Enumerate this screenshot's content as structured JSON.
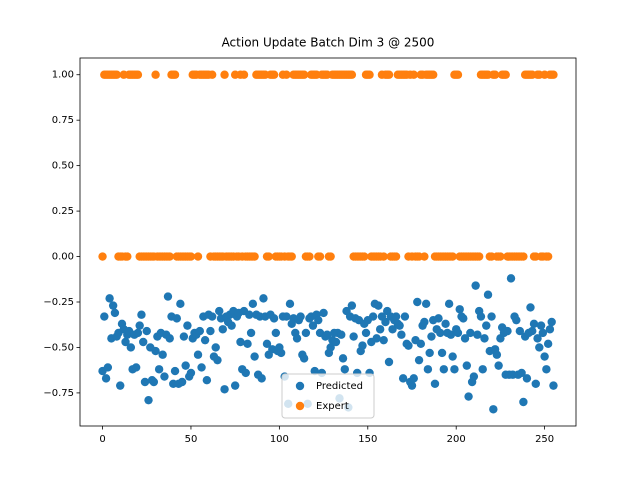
{
  "chart_data": {
    "type": "scatter",
    "title": "Action Update Batch Dim 3 @ 2500",
    "x": [
      0,
      1,
      2,
      3,
      4,
      5,
      6,
      7,
      8,
      9,
      10,
      11,
      12,
      13,
      14,
      15,
      16,
      17,
      18,
      19,
      20,
      21,
      22,
      23,
      24,
      25,
      26,
      27,
      28,
      29,
      30,
      31,
      32,
      33,
      34,
      35,
      36,
      37,
      38,
      39,
      40,
      41,
      42,
      43,
      44,
      45,
      46,
      47,
      48,
      49,
      50,
      51,
      52,
      53,
      54,
      55,
      56,
      57,
      58,
      59,
      60,
      61,
      62,
      63,
      64,
      65,
      66,
      67,
      68,
      69,
      70,
      71,
      72,
      73,
      74,
      75,
      76,
      77,
      78,
      79,
      80,
      81,
      82,
      83,
      84,
      85,
      86,
      87,
      88,
      89,
      90,
      91,
      92,
      93,
      94,
      95,
      96,
      97,
      98,
      99,
      100,
      101,
      102,
      103,
      104,
      105,
      106,
      107,
      108,
      109,
      110,
      111,
      112,
      113,
      114,
      115,
      116,
      117,
      118,
      119,
      120,
      121,
      122,
      123,
      124,
      125,
      126,
      127,
      128,
      129,
      130,
      131,
      132,
      133,
      134,
      135,
      136,
      137,
      138,
      139,
      140,
      141,
      142,
      143,
      144,
      145,
      146,
      147,
      148,
      149,
      150,
      151,
      152,
      153,
      154,
      155,
      156,
      157,
      158,
      159,
      160,
      161,
      162,
      163,
      164,
      165,
      166,
      167,
      168,
      169,
      170,
      171,
      172,
      173,
      174,
      175,
      176,
      177,
      178,
      179,
      180,
      181,
      182,
      183,
      184,
      185,
      186,
      187,
      188,
      189,
      190,
      191,
      192,
      193,
      194,
      195,
      196,
      197,
      198,
      199,
      200,
      201,
      202,
      203,
      204,
      205,
      206,
      207,
      208,
      209,
      210,
      211,
      212,
      213,
      214,
      215,
      216,
      217,
      218,
      219,
      220,
      221,
      222,
      223,
      224,
      225,
      226,
      227,
      228,
      229,
      230,
      231,
      232,
      233,
      234,
      235,
      236,
      237,
      238,
      239,
      240,
      241,
      242,
      243,
      244,
      245,
      246,
      247,
      248,
      249,
      250,
      251,
      252,
      253,
      254,
      255
    ],
    "series": [
      {
        "name": "Predicted",
        "color": "#1f77b4",
        "values": [
          -0.63,
          -0.33,
          -0.67,
          -0.61,
          -0.23,
          -0.45,
          -0.27,
          -0.31,
          -0.44,
          -0.42,
          -0.71,
          -0.37,
          -0.4,
          -0.47,
          -0.43,
          -0.41,
          -0.5,
          -0.62,
          -0.43,
          -0.61,
          -0.42,
          -0.38,
          -0.32,
          -0.47,
          -0.69,
          -0.41,
          -0.79,
          -0.5,
          -0.68,
          -0.69,
          -0.52,
          -0.44,
          -0.62,
          -0.42,
          -0.54,
          -0.66,
          -0.43,
          -0.22,
          -0.45,
          -0.33,
          -0.7,
          -0.63,
          -0.34,
          -0.7,
          -0.26,
          -0.69,
          -0.44,
          -0.6,
          -0.38,
          -0.66,
          -0.64,
          -0.45,
          -0.42,
          -0.43,
          -0.54,
          -0.41,
          -0.61,
          -0.33,
          -0.46,
          -0.68,
          -0.32,
          -0.41,
          -0.33,
          -0.55,
          -0.5,
          -0.57,
          -0.3,
          -0.34,
          -0.4,
          -0.73,
          -0.33,
          -0.36,
          -0.32,
          -0.38,
          -0.3,
          -0.71,
          -0.33,
          -0.31,
          -0.47,
          -0.62,
          -0.3,
          -0.64,
          -0.48,
          -0.32,
          -0.42,
          -0.26,
          -0.55,
          -0.32,
          -0.65,
          -0.33,
          -0.67,
          -0.23,
          -0.33,
          -0.48,
          -0.54,
          -0.32,
          -0.51,
          -0.34,
          -0.42,
          -0.52,
          -0.5,
          -0.53,
          -0.33,
          -0.66,
          -0.33,
          -0.81,
          -0.26,
          -0.37,
          -0.34,
          -0.42,
          -0.45,
          -0.35,
          -0.33,
          -0.54,
          -0.56,
          -0.42,
          -0.81,
          -0.34,
          -0.33,
          -0.38,
          -0.63,
          -0.32,
          -0.35,
          -0.42,
          -0.64,
          -0.31,
          -0.44,
          -0.43,
          -0.53,
          -0.5,
          -0.46,
          -0.42,
          -0.47,
          -0.42,
          -0.78,
          -0.43,
          -0.56,
          -0.62,
          -0.3,
          -0.83,
          -0.33,
          -0.27,
          -0.44,
          -0.34,
          -0.64,
          -0.35,
          -0.52,
          -0.49,
          -0.37,
          -0.42,
          -0.35,
          -0.64,
          -0.47,
          -0.33,
          -0.26,
          -0.45,
          -0.27,
          -0.4,
          -0.33,
          -0.46,
          -0.36,
          -0.3,
          -0.58,
          -0.33,
          -0.4,
          -0.35,
          -0.33,
          -0.37,
          -0.38,
          -0.43,
          -0.67,
          -0.33,
          -0.48,
          -0.49,
          -0.69,
          -0.71,
          -0.67,
          -0.46,
          -0.25,
          -0.57,
          -0.48,
          -0.38,
          -0.36,
          -0.26,
          -0.62,
          -0.53,
          -0.44,
          -0.35,
          -0.7,
          -0.4,
          -0.34,
          -0.42,
          -0.53,
          -0.62,
          -0.37,
          -0.42,
          -0.26,
          -0.43,
          -0.55,
          -0.62,
          -0.4,
          -0.42,
          -0.29,
          -0.33,
          -0.34,
          -0.45,
          -0.6,
          -0.77,
          -0.42,
          -0.69,
          -0.66,
          -0.16,
          -0.43,
          -0.3,
          -0.33,
          -0.62,
          -0.45,
          -0.38,
          -0.21,
          -0.52,
          -0.33,
          -0.84,
          -0.51,
          -0.54,
          -0.6,
          -0.45,
          -0.39,
          -0.42,
          -0.65,
          -0.41,
          -0.65,
          -0.12,
          -0.65,
          -0.33,
          -0.35,
          -0.65,
          -0.41,
          -0.64,
          -0.8,
          -0.44,
          -0.67,
          -0.42,
          -0.28,
          -0.41,
          -0.37,
          -0.7,
          -0.45,
          -0.5,
          -0.38,
          -0.42,
          -0.55,
          -0.62,
          -0.48,
          -0.4,
          -0.36,
          -0.71
        ]
      },
      {
        "name": "Expert",
        "color": "#ff7f0e",
        "values": [
          0,
          1,
          1,
          1,
          1,
          1,
          1,
          1,
          1,
          0,
          0,
          0,
          1,
          0,
          0,
          1,
          1,
          1,
          1,
          1,
          1,
          0,
          0,
          0,
          0,
          0,
          0,
          0,
          0,
          0,
          1,
          0,
          0,
          0,
          0,
          0,
          0,
          0,
          0,
          1,
          1,
          1,
          0,
          0,
          0,
          0,
          0,
          0,
          0,
          0,
          0,
          1,
          1,
          1,
          0,
          1,
          1,
          1,
          1,
          1,
          1,
          0,
          1,
          0,
          0,
          0,
          0,
          0,
          0,
          1,
          0,
          0,
          0,
          0,
          0,
          1,
          0,
          0,
          1,
          0,
          1,
          0,
          0,
          0,
          0,
          0,
          0,
          1,
          1,
          1,
          1,
          1,
          1,
          0,
          0,
          1,
          1,
          1,
          0,
          0,
          0,
          0,
          1,
          0,
          1,
          0,
          0,
          0,
          1,
          1,
          1,
          1,
          1,
          1,
          1,
          0,
          0,
          0,
          1,
          1,
          1,
          1,
          0,
          0,
          1,
          1,
          1,
          1,
          0,
          0,
          1,
          1,
          1,
          1,
          1,
          1,
          1,
          1,
          1,
          1,
          1,
          1,
          0,
          0,
          0,
          0,
          0,
          0,
          0,
          1,
          1,
          1,
          0,
          0,
          0,
          0,
          0,
          0,
          1,
          0,
          1,
          1,
          1,
          0,
          0,
          0,
          0,
          1,
          1,
          1,
          1,
          1,
          1,
          0,
          1,
          0,
          1,
          0,
          0,
          0,
          1,
          1,
          0,
          1,
          1,
          1,
          1,
          1,
          0,
          0,
          0,
          0,
          0,
          0,
          0,
          0,
          0,
          0,
          0,
          1,
          1,
          1,
          0,
          0,
          0,
          0,
          0,
          0,
          0,
          0,
          0,
          0,
          0,
          0,
          1,
          1,
          1,
          1,
          1,
          0,
          0,
          1,
          1,
          0,
          0,
          0,
          1,
          1,
          1,
          0,
          0,
          0,
          0,
          0,
          0,
          0,
          0,
          0,
          0,
          1,
          1,
          1,
          1,
          1,
          0,
          0,
          1,
          1,
          0,
          0,
          1,
          0,
          0,
          1,
          1,
          1
        ]
      }
    ],
    "xlim": [
      -12.75,
      267.75
    ],
    "xticks": [
      0,
      50,
      100,
      150,
      200,
      250
    ],
    "ylim": [
      -0.932,
      1.092
    ],
    "yticks": [
      {
        "value": -0.75,
        "label": "−0.75"
      },
      {
        "value": -0.5,
        "label": "−0.50"
      },
      {
        "value": -0.25,
        "label": "−0.25"
      },
      {
        "value": 0,
        "label": "0.00"
      },
      {
        "value": 0.25,
        "label": "0.25"
      },
      {
        "value": 0.5,
        "label": "0.50"
      },
      {
        "value": 0.75,
        "label": "0.75"
      },
      {
        "value": 1,
        "label": "1.00"
      }
    ],
    "grid": false,
    "legend": "lower center"
  }
}
